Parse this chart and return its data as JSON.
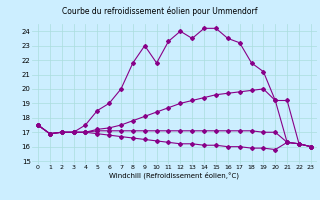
{
  "title": "Courbe du refroidissement éolien pour Ummendorf",
  "xlabel": "Windchill (Refroidissement éolien,°C)",
  "x_ticks": [
    0,
    1,
    2,
    3,
    4,
    5,
    6,
    7,
    8,
    9,
    10,
    11,
    12,
    13,
    14,
    15,
    16,
    17,
    18,
    19,
    20,
    21,
    22,
    23
  ],
  "ylim": [
    14.8,
    24.5
  ],
  "yticks": [
    15,
    16,
    17,
    18,
    19,
    20,
    21,
    22,
    23,
    24
  ],
  "line2_x": [
    0,
    1,
    2,
    3,
    4,
    5,
    6,
    7,
    8,
    9,
    10,
    11,
    12,
    13,
    14,
    15,
    16,
    17,
    18,
    19,
    20,
    21,
    22,
    23
  ],
  "line2_y": [
    17.5,
    16.9,
    17.0,
    17.0,
    17.5,
    18.5,
    19.0,
    20.0,
    21.8,
    23.0,
    21.8,
    23.3,
    24.0,
    23.5,
    24.2,
    24.2,
    23.5,
    23.2,
    21.8,
    21.2,
    19.2,
    19.2,
    16.2,
    16.0
  ],
  "line3_x": [
    0,
    1,
    2,
    3,
    4,
    5,
    6,
    7,
    8,
    9,
    10,
    11,
    12,
    13,
    14,
    15,
    16,
    17,
    18,
    19,
    20,
    21,
    22,
    23
  ],
  "line3_y": [
    17.5,
    16.9,
    17.0,
    17.0,
    17.0,
    17.2,
    17.3,
    17.5,
    17.8,
    18.1,
    18.4,
    18.7,
    19.0,
    19.2,
    19.4,
    19.6,
    19.7,
    19.8,
    19.9,
    20.0,
    19.2,
    16.3,
    16.2,
    16.0
  ],
  "line1_x": [
    0,
    1,
    2,
    3,
    4,
    5,
    6,
    7,
    8,
    9,
    10,
    11,
    12,
    13,
    14,
    15,
    16,
    17,
    18,
    19,
    20,
    21,
    22,
    23
  ],
  "line1_y": [
    17.5,
    16.9,
    17.0,
    17.0,
    17.0,
    17.1,
    17.1,
    17.1,
    17.1,
    17.1,
    17.1,
    17.1,
    17.1,
    17.1,
    17.1,
    17.1,
    17.1,
    17.1,
    17.1,
    17.0,
    17.0,
    16.3,
    16.2,
    16.0
  ],
  "line4_x": [
    0,
    1,
    2,
    3,
    4,
    5,
    6,
    7,
    8,
    9,
    10,
    11,
    12,
    13,
    14,
    15,
    16,
    17,
    18,
    19,
    20,
    21,
    22,
    23
  ],
  "line4_y": [
    17.5,
    16.9,
    17.0,
    17.0,
    17.0,
    16.9,
    16.8,
    16.7,
    16.6,
    16.5,
    16.4,
    16.3,
    16.2,
    16.2,
    16.1,
    16.1,
    16.0,
    16.0,
    15.9,
    15.9,
    15.8,
    16.3,
    16.2,
    16.0
  ],
  "line_color": "#880088",
  "bg_color": "#cceeff",
  "grid_color": "#aadddd",
  "marker": "D",
  "marker_size": 2.0,
  "linewidth": 0.8
}
